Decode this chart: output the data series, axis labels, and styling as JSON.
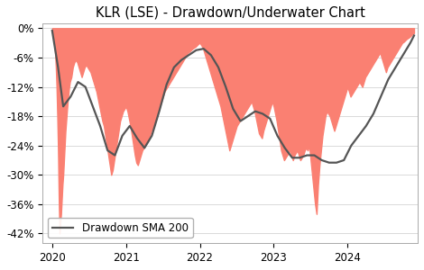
{
  "title": "KLR (LSE) - Drawdown/Underwater Chart",
  "yticks": [
    0,
    -6,
    -12,
    -18,
    -24,
    -30,
    -36,
    -42
  ],
  "ytick_labels": [
    "0%",
    "-6%",
    "-12%",
    "-18%",
    "-24%",
    "-30%",
    "-36%",
    "-42%"
  ],
  "ylim": [
    -44,
    1
  ],
  "xlim_start": 2019.87,
  "xlim_end": 2024.95,
  "fill_color": "#fa8072",
  "fill_alpha": 1.0,
  "line_color": "#555555",
  "line_width": 1.6,
  "background_color": "#ffffff",
  "legend_label": "Drawdown SMA 200",
  "title_fontsize": 10.5,
  "tick_fontsize": 8.5,
  "xticks": [
    2020,
    2021,
    2022,
    2023,
    2024
  ],
  "drawdown_dates": [
    2020.0,
    2020.01,
    2020.02,
    2020.03,
    2020.04,
    2020.05,
    2020.06,
    2020.07,
    2020.08,
    2020.09,
    2020.1,
    2020.11,
    2020.12,
    2020.13,
    2020.14,
    2020.15,
    2020.16,
    2020.17,
    2020.18,
    2020.19,
    2020.2,
    2020.21,
    2020.22,
    2020.23,
    2020.24,
    2020.25,
    2020.26,
    2020.27,
    2020.28,
    2020.29,
    2020.3,
    2020.32,
    2020.34,
    2020.36,
    2020.38,
    2020.4,
    2020.42,
    2020.44,
    2020.46,
    2020.48,
    2020.5,
    2020.52,
    2020.54,
    2020.56,
    2020.58,
    2020.6,
    2020.62,
    2020.64,
    2020.66,
    2020.68,
    2020.7,
    2020.72,
    2020.74,
    2020.76,
    2020.78,
    2020.8,
    2020.82,
    2020.84,
    2020.86,
    2020.88,
    2020.9,
    2020.92,
    2020.94,
    2020.96,
    2020.98,
    2021.0,
    2021.02,
    2021.04,
    2021.06,
    2021.08,
    2021.1,
    2021.12,
    2021.14,
    2021.16,
    2021.18,
    2021.2,
    2021.22,
    2021.24,
    2021.26,
    2021.28,
    2021.3,
    2021.32,
    2021.34,
    2021.36,
    2021.38,
    2021.4,
    2021.42,
    2021.44,
    2021.46,
    2021.48,
    2021.5,
    2021.52,
    2021.54,
    2021.56,
    2021.58,
    2021.6,
    2021.62,
    2021.64,
    2021.66,
    2021.68,
    2021.7,
    2021.72,
    2021.74,
    2021.76,
    2021.78,
    2021.8,
    2021.82,
    2021.84,
    2021.86,
    2021.88,
    2021.9,
    2021.92,
    2021.94,
    2021.96,
    2021.98,
    2022.0,
    2022.02,
    2022.04,
    2022.06,
    2022.08,
    2022.1,
    2022.12,
    2022.14,
    2022.16,
    2022.18,
    2022.2,
    2022.22,
    2022.24,
    2022.26,
    2022.28,
    2022.3,
    2022.32,
    2022.34,
    2022.36,
    2022.38,
    2022.4,
    2022.42,
    2022.44,
    2022.46,
    2022.48,
    2022.5,
    2022.52,
    2022.54,
    2022.56,
    2022.58,
    2022.6,
    2022.62,
    2022.64,
    2022.66,
    2022.68,
    2022.7,
    2022.72,
    2022.74,
    2022.76,
    2022.78,
    2022.8,
    2022.82,
    2022.84,
    2022.86,
    2022.88,
    2022.9,
    2022.92,
    2022.94,
    2022.96,
    2022.98,
    2023.0,
    2023.02,
    2023.04,
    2023.06,
    2023.08,
    2023.1,
    2023.12,
    2023.14,
    2023.16,
    2023.18,
    2023.2,
    2023.22,
    2023.24,
    2023.26,
    2023.28,
    2023.3,
    2023.32,
    2023.34,
    2023.36,
    2023.38,
    2023.4,
    2023.42,
    2023.44,
    2023.46,
    2023.48,
    2023.5,
    2023.52,
    2023.54,
    2023.56,
    2023.58,
    2023.6,
    2023.62,
    2023.64,
    2023.66,
    2023.68,
    2023.7,
    2023.72,
    2023.74,
    2023.76,
    2023.78,
    2023.8,
    2023.82,
    2023.84,
    2023.86,
    2023.88,
    2023.9,
    2023.92,
    2023.94,
    2023.96,
    2023.98,
    2024.0,
    2024.02,
    2024.04,
    2024.06,
    2024.08,
    2024.1,
    2024.12,
    2024.14,
    2024.16,
    2024.18,
    2024.2,
    2024.22,
    2024.24,
    2024.26,
    2024.28,
    2024.3,
    2024.32,
    2024.34,
    2024.36,
    2024.38,
    2024.4,
    2024.42,
    2024.44,
    2024.46,
    2024.48,
    2024.5,
    2024.52,
    2024.54,
    2024.56,
    2024.58,
    2024.6,
    2024.62,
    2024.64,
    2024.66,
    2024.68,
    2024.7,
    2024.72,
    2024.74,
    2024.76,
    2024.78,
    2024.8,
    2024.82,
    2024.84,
    2024.86,
    2024.88,
    2024.9
  ],
  "drawdown_values": [
    -0.5,
    -0.8,
    -1.5,
    -3.0,
    -5.0,
    -8.0,
    -12.0,
    -18.0,
    -25.0,
    -35.0,
    -42.0,
    -40.0,
    -38.0,
    -35.0,
    -32.0,
    -30.0,
    -27.0,
    -24.0,
    -21.0,
    -19.0,
    -17.0,
    -15.0,
    -13.5,
    -12.0,
    -11.0,
    -10.5,
    -10.0,
    -9.0,
    -8.0,
    -7.5,
    -7.0,
    -6.5,
    -7.0,
    -8.0,
    -9.0,
    -10.0,
    -9.0,
    -8.0,
    -7.5,
    -8.0,
    -8.5,
    -9.0,
    -10.0,
    -11.0,
    -12.0,
    -13.0,
    -14.5,
    -16.0,
    -17.5,
    -19.0,
    -20.0,
    -22.0,
    -24.0,
    -26.0,
    -28.0,
    -30.0,
    -29.0,
    -27.0,
    -25.0,
    -23.0,
    -21.0,
    -19.0,
    -18.0,
    -17.0,
    -16.5,
    -16.0,
    -17.0,
    -18.5,
    -20.0,
    -22.0,
    -24.0,
    -26.0,
    -27.5,
    -28.0,
    -27.0,
    -26.0,
    -25.0,
    -24.5,
    -24.0,
    -23.5,
    -23.0,
    -22.0,
    -21.0,
    -20.5,
    -20.0,
    -19.0,
    -18.0,
    -17.0,
    -16.0,
    -15.0,
    -14.0,
    -13.0,
    -12.5,
    -12.0,
    -11.5,
    -11.0,
    -10.5,
    -10.0,
    -9.5,
    -9.0,
    -8.5,
    -8.0,
    -7.5,
    -7.0,
    -6.5,
    -6.0,
    -5.5,
    -5.0,
    -4.8,
    -4.5,
    -4.2,
    -4.0,
    -3.8,
    -3.5,
    -3.2,
    -3.0,
    -3.5,
    -4.0,
    -5.0,
    -6.0,
    -7.0,
    -8.0,
    -9.0,
    -10.0,
    -11.0,
    -12.0,
    -13.0,
    -14.0,
    -15.0,
    -16.0,
    -17.5,
    -19.0,
    -20.5,
    -22.0,
    -23.5,
    -25.0,
    -24.0,
    -23.0,
    -22.0,
    -21.0,
    -20.0,
    -19.5,
    -19.0,
    -18.5,
    -18.0,
    -17.5,
    -17.0,
    -16.5,
    -16.0,
    -15.5,
    -15.0,
    -16.0,
    -17.0,
    -18.5,
    -20.0,
    -21.5,
    -22.0,
    -22.5,
    -21.0,
    -20.0,
    -19.0,
    -18.0,
    -17.0,
    -16.0,
    -15.0,
    -16.0,
    -17.5,
    -19.0,
    -21.0,
    -23.0,
    -25.0,
    -26.0,
    -27.0,
    -26.5,
    -26.0,
    -25.5,
    -25.0,
    -26.0,
    -27.0,
    -26.0,
    -25.5,
    -25.0,
    -26.0,
    -27.0,
    -26.5,
    -26.0,
    -25.0,
    -24.5,
    -25.0,
    -24.0,
    -27.0,
    -30.0,
    -33.0,
    -36.0,
    -38.0,
    -32.0,
    -28.0,
    -25.0,
    -22.0,
    -20.0,
    -18.0,
    -17.0,
    -17.5,
    -18.0,
    -19.0,
    -20.0,
    -21.0,
    -20.0,
    -19.0,
    -18.0,
    -17.0,
    -16.0,
    -15.0,
    -14.0,
    -13.0,
    -12.0,
    -13.0,
    -14.0,
    -13.5,
    -13.0,
    -12.5,
    -12.0,
    -11.5,
    -11.0,
    -11.5,
    -12.0,
    -11.0,
    -10.0,
    -9.5,
    -9.0,
    -8.5,
    -8.0,
    -7.5,
    -7.0,
    -6.5,
    -6.0,
    -5.5,
    -5.0,
    -6.0,
    -7.0,
    -8.0,
    -9.0,
    -8.0,
    -7.5,
    -7.0,
    -6.5,
    -6.0,
    -5.5,
    -5.0,
    -4.5,
    -4.0,
    -3.5,
    -3.0,
    -2.8,
    -2.5,
    -2.2,
    -2.0,
    -1.8,
    -1.5,
    -1.2,
    -1.0
  ],
  "sma_dates": [
    2020.0,
    2020.08,
    2020.15,
    2020.25,
    2020.35,
    2020.45,
    2020.55,
    2020.65,
    2020.75,
    2020.85,
    2020.95,
    2021.05,
    2021.15,
    2021.25,
    2021.35,
    2021.45,
    2021.55,
    2021.65,
    2021.75,
    2021.85,
    2021.95,
    2022.05,
    2022.15,
    2022.25,
    2022.35,
    2022.45,
    2022.55,
    2022.65,
    2022.75,
    2022.85,
    2022.95,
    2023.05,
    2023.15,
    2023.25,
    2023.35,
    2023.45,
    2023.55,
    2023.65,
    2023.75,
    2023.85,
    2023.95,
    2024.05,
    2024.15,
    2024.25,
    2024.35,
    2024.45,
    2024.55,
    2024.65,
    2024.75,
    2024.85,
    2024.9
  ],
  "sma_values": [
    -0.5,
    -8.0,
    -16.0,
    -14.0,
    -11.0,
    -12.0,
    -16.0,
    -20.0,
    -25.0,
    -26.0,
    -22.0,
    -20.0,
    -22.5,
    -24.5,
    -22.0,
    -17.0,
    -11.5,
    -8.0,
    -6.5,
    -5.5,
    -4.5,
    -4.2,
    -5.5,
    -8.0,
    -12.0,
    -16.5,
    -19.0,
    -18.0,
    -17.0,
    -17.5,
    -18.5,
    -22.0,
    -24.5,
    -26.5,
    -26.5,
    -26.0,
    -26.0,
    -27.0,
    -27.5,
    -27.5,
    -27.0,
    -24.0,
    -22.0,
    -20.0,
    -17.5,
    -14.0,
    -10.5,
    -8.0,
    -5.5,
    -3.0,
    -1.5
  ]
}
